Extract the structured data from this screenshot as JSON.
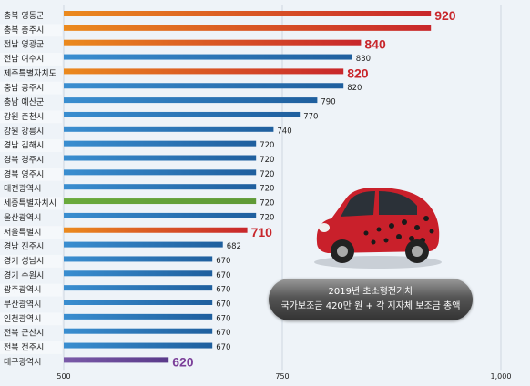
{
  "chart_data": {
    "type": "bar",
    "orientation": "horizontal",
    "categories": [
      "충북 영동군",
      "충북 충주시",
      "전남 영광군",
      "전남 여수시",
      "제주특별자치도",
      "충남 공주시",
      "충남 예산군",
      "강원 춘천시",
      "강원 강릉시",
      "경남 김해시",
      "경북 경주시",
      "경북 영주시",
      "대전광역시",
      "세종특별자치시",
      "울산광역시",
      "서울특별시",
      "경남 진주시",
      "경기 성남시",
      "경기 수원시",
      "광주광역시",
      "부산광역시",
      "인천광역시",
      "전북 군산시",
      "전북 전주시",
      "대구광역시"
    ],
    "values": [
      920,
      920,
      840,
      830,
      820,
      820,
      790,
      770,
      740,
      720,
      720,
      720,
      720,
      720,
      720,
      710,
      682,
      670,
      670,
      670,
      670,
      670,
      670,
      670,
      620
    ],
    "value_labels": [
      "920",
      "",
      "840",
      "830",
      "820",
      "820",
      "790",
      "770",
      "740",
      "720",
      "720",
      "720",
      "720",
      "720",
      "720",
      "710",
      "682",
      "670",
      "670",
      "670",
      "670",
      "670",
      "670",
      "670",
      "620"
    ],
    "label_colors": [
      "#eb8a1e",
      "#eb8a1e",
      "#eb8a1e",
      "#3a8ed0",
      "#eb8a1e",
      "#3a8ed0",
      "#3a8ed0",
      "#3a8ed0",
      "#3a8ed0",
      "#3a8ed0",
      "#3a8ed0",
      "#3a8ed0",
      "#3a8ed0",
      "#6aaa3c",
      "#3a8ed0",
      "#eb8a1e",
      "#3a8ed0",
      "#3a8ed0",
      "#3a8ed0",
      "#3a8ed0",
      "#3a8ed0",
      "#3a8ed0",
      "#3a8ed0",
      "#3a8ed0",
      "#7a5aa8"
    ],
    "bar_colors": [
      "#c8262b",
      "#c8262b",
      "#c8262b",
      "#1f5f9e",
      "#c8262b",
      "#1f5f9e",
      "#1f5f9e",
      "#1f5f9e",
      "#1f5f9e",
      "#1f5f9e",
      "#1f5f9e",
      "#1f5f9e",
      "#1f5f9e",
      "#5f9a36",
      "#1f5f9e",
      "#c8262b",
      "#1f5f9e",
      "#1f5f9e",
      "#1f5f9e",
      "#1f5f9e",
      "#1f5f9e",
      "#1f5f9e",
      "#1f5f9e",
      "#1f5f9e",
      "#5a3a8a"
    ],
    "emphasized": [
      "920",
      "",
      "840",
      "",
      "820",
      "",
      "",
      "",
      "",
      "",
      "",
      "",
      "",
      "",
      "",
      "710",
      "",
      "",
      "",
      "",
      "",
      "",
      "",
      "",
      "620"
    ],
    "xlim": [
      500,
      1000
    ],
    "xticks": [
      "500",
      "750",
      "1,000"
    ],
    "xtick_values": [
      500,
      750,
      1000
    ],
    "annotation": [
      "2019년 초소형전기차",
      "국가보조금 420만 원 + 각 지자체 보조금 총액"
    ]
  },
  "colors": {
    "background": "#eef3f8",
    "highlight": "#c8262b",
    "accent": "#eb8a1e"
  },
  "icons": {
    "car": "red-ladybug-microcar-image"
  }
}
